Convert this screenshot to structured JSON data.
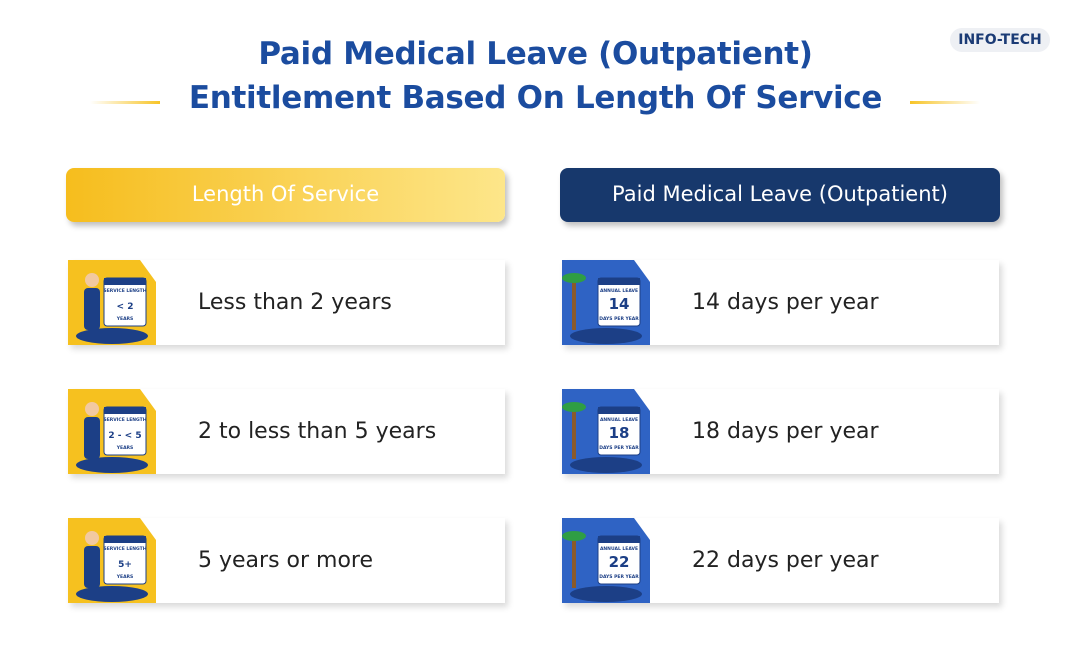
{
  "logo": "INFO-TECH",
  "header": {
    "title_line1": "Paid Medical Leave (Outpatient)",
    "title_line2": "Entitlement Based On Length Of Service"
  },
  "table": {
    "columns": [
      "Length Of Service",
      "Paid Medical Leave (Outpatient)"
    ],
    "rows": [
      [
        "Less than 2 years",
        "14 days per year"
      ],
      [
        "2 to less than 5 years",
        "18 days per year"
      ],
      [
        "5 years or more",
        "22 days per year"
      ]
    ]
  },
  "icons": {
    "left": [
      {
        "caption": "SERVICE LENGTH",
        "value": "< 2",
        "unit": "YEARS"
      },
      {
        "caption": "SERVICE LENGTH",
        "value": "2 - < 5",
        "unit": "YEARS"
      },
      {
        "caption": "SERVICE LENGTH",
        "value": "5+",
        "unit": "YEARS"
      }
    ],
    "right": [
      {
        "caption": "ANNUAL LEAVE",
        "value": "14",
        "unit": "DAYS PER YEAR"
      },
      {
        "caption": "ANNUAL LEAVE",
        "value": "18",
        "unit": "DAYS PER YEAR"
      },
      {
        "caption": "ANNUAL LEAVE",
        "value": "22",
        "unit": "DAYS PER YEAR"
      }
    ]
  }
}
